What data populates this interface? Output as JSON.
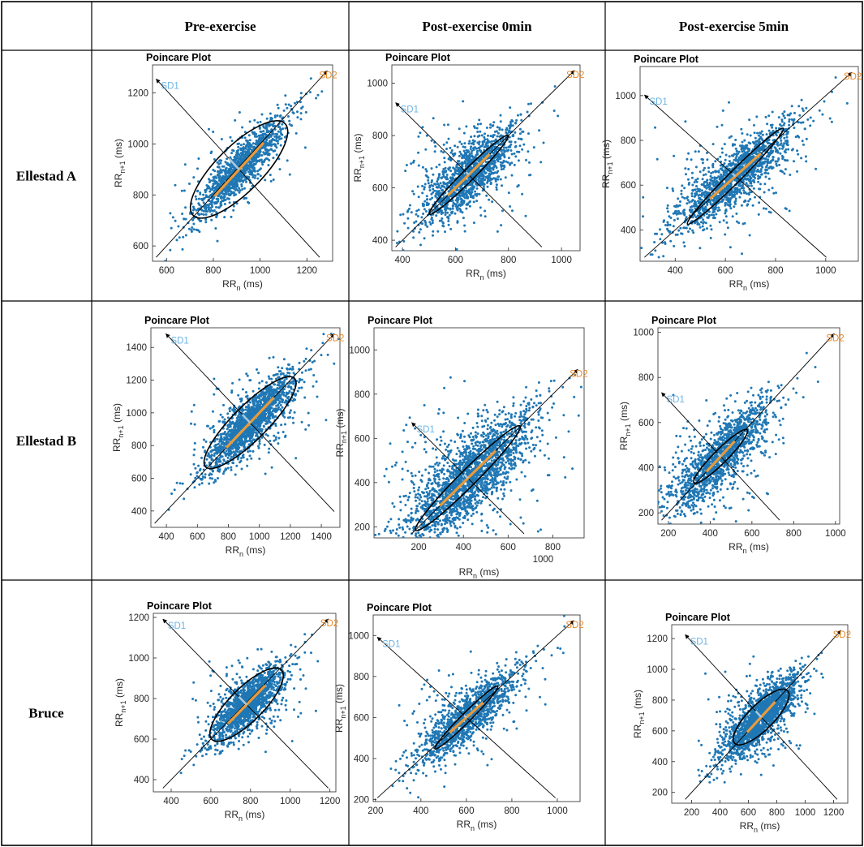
{
  "columns": [
    "Pre-exercise",
    "Post-exercise 0min",
    "Post-exercise 5min"
  ],
  "rows": [
    "Ellestad A",
    "Ellestad B",
    "Bruce"
  ],
  "colors": {
    "points": "#1f77b4",
    "sd2_label": "#e8892b",
    "sd1_label": "#6cb4e4",
    "ellipse": "#000000",
    "sd2_segment": "#e89a3c",
    "sd1_segment": "#a9c8de"
  },
  "chart_data": [
    {
      "type": "scatter",
      "row": "Ellestad A",
      "column": "Pre-exercise",
      "title": "Poincare Plot",
      "xlabel": "RR",
      "xlabel_sub": "n",
      "ylabel": "RR",
      "ylabel_sub": "n+1",
      "unit": "(ms)",
      "xlim": [
        540,
        1310
      ],
      "ylim": [
        540,
        1310
      ],
      "xticks": [
        600,
        800,
        1000,
        1200
      ],
      "yticks": [
        600,
        800,
        1000,
        1200
      ],
      "center": [
        910,
        900
      ],
      "sd1": 60,
      "sd2": 185,
      "spread_x": [
        130,
        28
      ],
      "spread_y": 75,
      "n_points": 1300,
      "sd1_label": "SD1",
      "sd2_label": "SD2"
    },
    {
      "type": "scatter",
      "row": "Ellestad A",
      "column": "Post-exercise 0min",
      "title": "Poincare Plot",
      "xlabel": "RR",
      "xlabel_sub": "n",
      "ylabel": "RR",
      "ylabel_sub": "n+1",
      "unit": "(ms)",
      "xlim": [
        360,
        1070
      ],
      "ylim": [
        360,
        1070
      ],
      "xticks": [
        400,
        600,
        800,
        1000
      ],
      "yticks": [
        400,
        600,
        800,
        1000
      ],
      "center": [
        650,
        650
      ],
      "sd1": 15,
      "sd2": 140,
      "spread_x": [
        110,
        40
      ],
      "spread_y": 35,
      "n_points": 1500,
      "sd1_label": "SD1",
      "sd2_label": "SD2"
    },
    {
      "type": "scatter",
      "row": "Ellestad A",
      "column": "Post-exercise 5min",
      "title": "Poincare Plot",
      "xlabel": "RR",
      "xlabel_sub": "n",
      "ylabel": "RR",
      "ylabel_sub": "n+1",
      "unit": "(ms)",
      "xlim": [
        260,
        1130
      ],
      "ylim": [
        260,
        1130
      ],
      "xticks": [
        400,
        600,
        800,
        1000
      ],
      "yticks": [
        400,
        600,
        800,
        1000
      ],
      "center": [
        640,
        640
      ],
      "sd1": 18,
      "sd2": 180,
      "spread_x": [
        145,
        40
      ],
      "spread_y": 35,
      "n_points": 1600,
      "sd1_label": "SD1",
      "sd2_label": "SD2"
    },
    {
      "type": "scatter",
      "row": "Ellestad B",
      "column": "Pre-exercise",
      "title": "Poincare Plot",
      "xlabel": "RR",
      "xlabel_sub": "n",
      "ylabel": "RR",
      "ylabel_sub": "n+1",
      "unit": "(ms)",
      "xlim": [
        300,
        1520
      ],
      "ylim": [
        300,
        1520
      ],
      "xticks": [
        400,
        600,
        800,
        1000,
        1200,
        1400
      ],
      "yticks": [
        400,
        600,
        800,
        1000,
        1200,
        1400
      ],
      "center": [
        940,
        940
      ],
      "sd1": 70,
      "sd2": 270,
      "spread_x": [
        190,
        50
      ],
      "spread_y": 85,
      "n_points": 1700,
      "sd1_label": "SD1",
      "sd2_label": "SD2"
    },
    {
      "type": "scatter",
      "row": "Ellestad B",
      "column": "Post-exercise 0min",
      "title": "Poincare Plot",
      "xlabel": "RR",
      "xlabel_sub": "n",
      "ylabel": "RR",
      "ylabel_sub": "n+1",
      "unit": "(ms)",
      "xlim": [
        0,
        940
      ],
      "ylim": [
        150,
        1100
      ],
      "xticks": [
        200,
        400,
        600,
        800
      ],
      "yticks": [
        200,
        400,
        600,
        800,
        1000
      ],
      "xtick_extra": "1000",
      "center": [
        420,
        420
      ],
      "sd1": 25,
      "sd2": 220,
      "spread_x": [
        180,
        60
      ],
      "spread_y": 50,
      "n_points": 2200,
      "sd1_label": "SD1",
      "sd2_label": "SD2"
    },
    {
      "type": "scatter",
      "row": "Ellestad B",
      "column": "Post-exercise 5min",
      "title": "Poincare Plot",
      "xlabel": "RR",
      "xlabel_sub": "n",
      "ylabel": "RR",
      "ylabel_sub": "n+1",
      "unit": "(ms)",
      "xlim": [
        150,
        1020
      ],
      "ylim": [
        150,
        1020
      ],
      "xticks": [
        200,
        400,
        600,
        800,
        1000
      ],
      "yticks": [
        200,
        400,
        600,
        800,
        1000
      ],
      "center": [
        450,
        450
      ],
      "sd1": 20,
      "sd2": 120,
      "spread_x": [
        150,
        45
      ],
      "spread_y": 45,
      "n_points": 1500,
      "sd1_label": "SD1",
      "sd2_label": "SD2"
    },
    {
      "type": "scatter",
      "row": "Bruce",
      "column": "Pre-exercise",
      "title": "Poincare Plot",
      "xlabel": "RR",
      "xlabel_sub": "n",
      "ylabel": "RR",
      "ylabel_sub": "n+1",
      "unit": "(ms)",
      "xlim": [
        310,
        1230
      ],
      "ylim": [
        340,
        1220
      ],
      "xticks": [
        400,
        600,
        800,
        1000,
        1200
      ],
      "yticks": [
        400,
        600,
        800,
        1000,
        1200
      ],
      "center": [
        780,
        770
      ],
      "sd1": 55,
      "sd2": 165,
      "spread_x": [
        120,
        40
      ],
      "spread_y": 70,
      "n_points": 1500,
      "sd1_label": "SD1",
      "sd2_label": "SD2"
    },
    {
      "type": "scatter",
      "row": "Bruce",
      "column": "Post-exercise 0min",
      "title": "Poincare Plot",
      "xlabel": "RR",
      "xlabel_sub": "n",
      "ylabel": "RR",
      "ylabel_sub": "n+1",
      "unit": "(ms)",
      "xlim": [
        190,
        1100
      ],
      "ylim": [
        190,
        1100
      ],
      "xticks": [
        200,
        400,
        600,
        800,
        1000
      ],
      "yticks": [
        200,
        400,
        600,
        800,
        1000
      ],
      "center": [
        600,
        600
      ],
      "sd1": 15,
      "sd2": 130,
      "spread_x": [
        145,
        40
      ],
      "spread_y": 30,
      "n_points": 1300,
      "sd1_label": "SD1",
      "sd2_label": "SD2"
    },
    {
      "type": "scatter",
      "row": "Bruce",
      "column": "Post-exercise 5min",
      "title": "Poincare Plot",
      "xlabel": "RR",
      "xlabel_sub": "n",
      "ylabel": "RR",
      "ylabel_sub": "n+1",
      "unit": "(ms)",
      "xlim": [
        60,
        1300
      ],
      "ylim": [
        130,
        1290
      ],
      "xticks": [
        200,
        400,
        600,
        800,
        1000,
        1200
      ],
      "yticks": [
        200,
        400,
        600,
        800,
        1000,
        1200
      ],
      "center": [
        690,
        690
      ],
      "sd1": 55,
      "sd2": 175,
      "spread_x": [
        160,
        50
      ],
      "spread_y": 85,
      "n_points": 2000,
      "sd1_label": "SD1",
      "sd2_label": "SD2"
    }
  ]
}
